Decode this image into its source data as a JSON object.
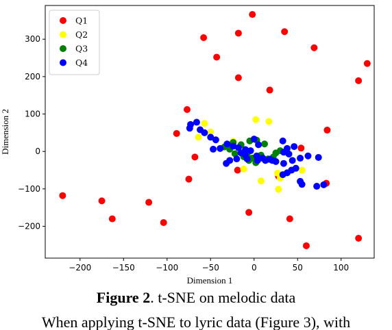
{
  "figure": {
    "label": "Figure 2",
    "caption": ". t-SNE on melodic data"
  },
  "body_text": "When applying t-SNE to lyric data (Figure 3), with",
  "chart_data": {
    "type": "scatter",
    "xlabel": "Dimension 1",
    "ylabel": "Dimension 2",
    "xlim": [
      -240,
      138
    ],
    "ylim": [
      -285,
      390
    ],
    "xticks": [
      -200,
      -150,
      -100,
      -50,
      0,
      50,
      100
    ],
    "yticks": [
      -200,
      -100,
      0,
      100,
      200,
      300
    ],
    "grid": false,
    "legend_position": "top-left",
    "series": [
      {
        "name": "Q1",
        "color": "#ff0000",
        "points": [
          [
            -2,
            366
          ],
          [
            -58,
            304
          ],
          [
            -18,
            316
          ],
          [
            35,
            320
          ],
          [
            69,
            277
          ],
          [
            -43,
            252
          ],
          [
            130,
            235
          ],
          [
            -18,
            197
          ],
          [
            120,
            189
          ],
          [
            18,
            164
          ],
          [
            -77,
            112
          ],
          [
            -89,
            48
          ],
          [
            84,
            57
          ],
          [
            -68,
            -15
          ],
          [
            54,
            9
          ],
          [
            -19,
            -50
          ],
          [
            -75,
            -74
          ],
          [
            28,
            -66
          ],
          [
            83,
            -85
          ],
          [
            -220,
            -118
          ],
          [
            -175,
            -132
          ],
          [
            -121,
            -136
          ],
          [
            -163,
            -180
          ],
          [
            -104,
            -190
          ],
          [
            -6,
            -163
          ],
          [
            41,
            -180
          ],
          [
            120,
            -232
          ],
          [
            60,
            -252
          ]
        ]
      },
      {
        "name": "Q2",
        "color": "#ffff00",
        "points": [
          [
            -57,
            75
          ],
          [
            2,
            85
          ],
          [
            17,
            80
          ],
          [
            -64,
            38
          ],
          [
            -50,
            52
          ],
          [
            -24,
            27
          ],
          [
            -12,
            -47
          ],
          [
            8,
            -79
          ],
          [
            27,
            -58
          ],
          [
            30,
            -71
          ],
          [
            28,
            -101
          ],
          [
            55,
            -50
          ]
        ]
      },
      {
        "name": "Q3",
        "color": "#008000",
        "points": [
          [
            -34,
            12
          ],
          [
            -24,
            24
          ],
          [
            -15,
            18
          ],
          [
            -5,
            28
          ],
          [
            3,
            30
          ],
          [
            12,
            20
          ],
          [
            -22,
            -6
          ],
          [
            -12,
            -14
          ],
          [
            -2,
            -18
          ],
          [
            8,
            -10
          ],
          [
            16,
            -20
          ],
          [
            -6,
            -24
          ],
          [
            25,
            -4
          ],
          [
            2,
            -30
          ],
          [
            -28,
            6
          ],
          [
            -8,
            -8
          ],
          [
            22,
            -15
          ],
          [
            30,
            2
          ]
        ]
      },
      {
        "name": "Q4",
        "color": "#0000ff",
        "points": [
          [
            -66,
            78
          ],
          [
            -73,
            72
          ],
          [
            -74,
            62
          ],
          [
            -62,
            58
          ],
          [
            -57,
            50
          ],
          [
            -50,
            38
          ],
          [
            -44,
            31
          ],
          [
            -31,
            20
          ],
          [
            -24,
            14
          ],
          [
            -18,
            10
          ],
          [
            -10,
            5
          ],
          [
            -4,
            2
          ],
          [
            -47,
            6
          ],
          [
            -39,
            8
          ],
          [
            -15,
            -4
          ],
          [
            -10,
            -10
          ],
          [
            3,
            -12
          ],
          [
            10,
            -18
          ],
          [
            18,
            -21
          ],
          [
            25,
            -27
          ],
          [
            34,
            -32
          ],
          [
            44,
            -24
          ],
          [
            53,
            -18
          ],
          [
            62,
            -12
          ],
          [
            74,
            -16
          ],
          [
            33,
            28
          ],
          [
            46,
            13
          ],
          [
            38,
            8
          ],
          [
            34,
            -2
          ],
          [
            0,
            33
          ],
          [
            5,
            18
          ],
          [
            -28,
            -24
          ],
          [
            -32,
            -32
          ],
          [
            -20,
            -20
          ],
          [
            -8,
            -20
          ],
          [
            4,
            -24
          ],
          [
            13,
            -24
          ],
          [
            21,
            -24
          ],
          [
            33,
            -62
          ],
          [
            38,
            -57
          ],
          [
            43,
            -50
          ],
          [
            48,
            -45
          ],
          [
            40,
            -7
          ],
          [
            53,
            -80
          ],
          [
            55,
            -88
          ],
          [
            72,
            -93
          ],
          [
            80,
            -89
          ]
        ]
      }
    ]
  }
}
